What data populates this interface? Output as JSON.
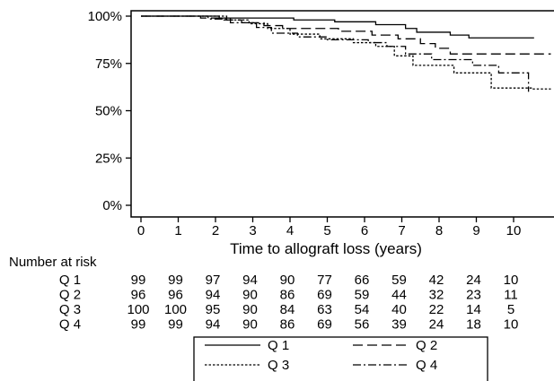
{
  "chart_data": {
    "type": "line",
    "subtype": "kaplan-meier step",
    "title": "",
    "xlabel": "Time to allograft loss  (years)",
    "ylabel": "",
    "xlim": [
      -0.3,
      11.3
    ],
    "ylim": [
      0,
      1
    ],
    "x_ticks": [
      "0",
      "1",
      "2",
      "3",
      "4",
      "5",
      "6",
      "7",
      "8",
      "9",
      "10"
    ],
    "y_ticks": [
      "0%",
      "25%",
      "50%",
      "75%",
      "100%"
    ],
    "grid": false,
    "series": [
      {
        "name": "Q 1",
        "dash": "solid",
        "points": [
          [
            0,
            1
          ],
          [
            2.1,
            0.99
          ],
          [
            4.1,
            0.98
          ],
          [
            5.2,
            0.97
          ],
          [
            6.3,
            0.955
          ],
          [
            7.1,
            0.935
          ],
          [
            7.4,
            0.915
          ],
          [
            8.3,
            0.9
          ],
          [
            8.8,
            0.885
          ],
          [
            10.55,
            0.885
          ]
        ]
      },
      {
        "name": "Q 2",
        "dash": "long-dash",
        "points": [
          [
            0,
            1
          ],
          [
            1.6,
            0.99
          ],
          [
            2.2,
            0.98
          ],
          [
            2.7,
            0.965
          ],
          [
            3.3,
            0.95
          ],
          [
            3.8,
            0.935
          ],
          [
            5.3,
            0.92
          ],
          [
            6.2,
            0.9
          ],
          [
            6.9,
            0.88
          ],
          [
            7.5,
            0.855
          ],
          [
            7.9,
            0.83
          ],
          [
            8.3,
            0.8
          ],
          [
            11,
            0.8
          ]
        ]
      },
      {
        "name": "Q 3",
        "dash": "dotted",
        "points": [
          [
            0,
            1
          ],
          [
            2.3,
            0.98
          ],
          [
            2.9,
            0.96
          ],
          [
            3.4,
            0.935
          ],
          [
            4.0,
            0.905
          ],
          [
            4.8,
            0.88
          ],
          [
            5.7,
            0.86
          ],
          [
            6.3,
            0.84
          ],
          [
            6.8,
            0.79
          ],
          [
            7.3,
            0.74
          ],
          [
            8.4,
            0.7
          ],
          [
            9.4,
            0.62
          ],
          [
            10.5,
            0.62
          ],
          [
            10.5,
            0.615
          ],
          [
            11,
            0.615
          ]
        ]
      },
      {
        "name": "Q 4",
        "dash": "dash-dot",
        "points": [
          [
            0,
            1
          ],
          [
            1.8,
            0.985
          ],
          [
            2.4,
            0.965
          ],
          [
            3.1,
            0.94
          ],
          [
            3.5,
            0.91
          ],
          [
            4.2,
            0.89
          ],
          [
            5.0,
            0.875
          ],
          [
            6.1,
            0.86
          ],
          [
            6.6,
            0.84
          ],
          [
            7.1,
            0.8
          ],
          [
            7.8,
            0.77
          ],
          [
            8.9,
            0.74
          ],
          [
            9.6,
            0.7
          ],
          [
            10.4,
            0.6
          ]
        ]
      }
    ],
    "legend": {
      "position": "bottom",
      "entries": [
        "Q 1",
        "Q 2",
        "Q 3",
        "Q 4"
      ]
    },
    "risk_table": {
      "title": "Number at risk",
      "rows": [
        {
          "label": "Q 1",
          "values": [
            "99",
            "99",
            "97",
            "94",
            "90",
            "77",
            "66",
            "59",
            "42",
            "24",
            "10"
          ]
        },
        {
          "label": "Q 2",
          "values": [
            "96",
            "96",
            "94",
            "90",
            "86",
            "69",
            "59",
            "44",
            "32",
            "23",
            "11"
          ]
        },
        {
          "label": "Q 3",
          "values": [
            "100",
            "100",
            "95",
            "90",
            "84",
            "63",
            "54",
            "40",
            "22",
            "14",
            "5"
          ]
        },
        {
          "label": "Q 4",
          "values": [
            "99",
            "99",
            "94",
            "90",
            "86",
            "69",
            "56",
            "39",
            "24",
            "18",
            "10"
          ]
        }
      ]
    }
  }
}
